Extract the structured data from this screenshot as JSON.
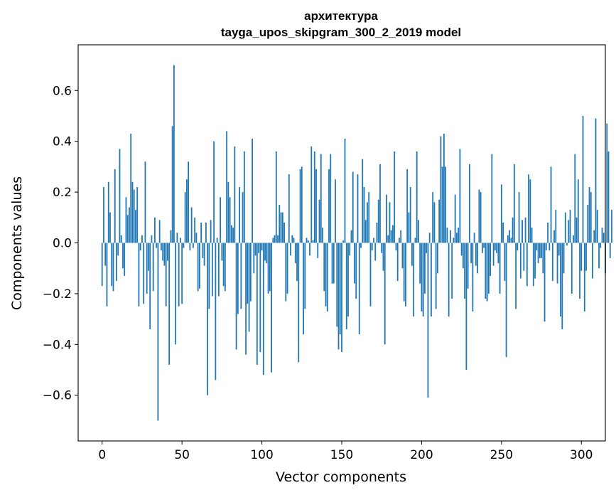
{
  "chart_data": {
    "type": "bar",
    "title": "архитектура",
    "subtitle": "tayga_upos_skipgram_300_2_2019 model",
    "xlabel": "Vector components",
    "ylabel": "Components values",
    "xlim": [
      -15,
      315
    ],
    "ylim": [
      -0.78,
      0.78
    ],
    "xticks": [
      0,
      50,
      100,
      150,
      200,
      250,
      300
    ],
    "yticks": [
      -0.6,
      -0.4,
      -0.2,
      0.0,
      0.2,
      0.4,
      0.6
    ],
    "ytick_labels": [
      "−0.6",
      "−0.4",
      "−0.2",
      "0.0",
      "0.2",
      "0.4",
      "0.6"
    ],
    "xtick_labels": [
      "0",
      "50",
      "100",
      "150",
      "200",
      "250",
      "300"
    ],
    "grid": false,
    "bar_color": "#1f77b4",
    "x_start": 0,
    "values": [
      -0.17,
      0.22,
      -0.09,
      -0.25,
      0.24,
      0.12,
      -0.17,
      -0.19,
      0.29,
      -0.15,
      -0.05,
      0.37,
      0.03,
      -0.1,
      -0.13,
      0.18,
      0.11,
      0.14,
      0.43,
      0.24,
      0.21,
      0.13,
      0.22,
      -0.25,
      -0.03,
      0.03,
      -0.24,
      0.32,
      -0.2,
      -0.11,
      -0.34,
      0.03,
      -0.19,
      0.1,
      -0.02,
      -0.7,
      0.09,
      -0.03,
      -0.07,
      -0.09,
      -0.25,
      -0.07,
      -0.48,
      0.05,
      0.46,
      0.7,
      -0.4,
      0.04,
      -0.25,
      0.02,
      -0.24,
      -0.02,
      0.2,
      0.25,
      0.32,
      -0.03,
      0.14,
      -0.02,
      0.1,
      0.04,
      -0.19,
      -0.18,
      0.08,
      -0.06,
      -0.09,
      0.08,
      -0.6,
      -0.26,
      0.09,
      -0.21,
      0.4,
      -0.54,
      0.02,
      -0.21,
      0.18,
      -0.07,
      -0.17,
      -0.19,
      0.44,
      0.24,
      0.18,
      0.07,
      0.06,
      0.38,
      -0.42,
      -0.28,
      0.22,
      -0.26,
      0.2,
      0.36,
      -0.44,
      -0.24,
      -0.35,
      -0.23,
      0.41,
      -0.12,
      -0.05,
      -0.48,
      -0.04,
      -0.43,
      -0.03,
      -0.52,
      -0.07,
      -0.08,
      -0.2,
      -0.19,
      -0.51,
      0.02,
      0.03,
      0.36,
      0.03,
      0.15,
      0.12,
      0.12,
      0.08,
      -0.23,
      -0.2,
      0.27,
      -0.05,
      0.03,
      0.02,
      -0.08,
      -0.15,
      -0.47,
      0.29,
      0.3,
      -0.36,
      -0.26,
      0.02,
      0.01,
      -0.05,
      0.38,
      0.01,
      0.36,
      0.29,
      -0.06,
      0.17,
      0.35,
      0.06,
      -0.19,
      -0.25,
      -0.27,
      0.29,
      0.35,
      -0.16,
      -0.16,
      0.25,
      -0.33,
      -0.42,
      -0.36,
      -0.43,
      0.01,
      0.41,
      -0.34,
      -0.29,
      -0.05,
      0.05,
      0.28,
      -0.16,
      -0.22,
      0.27,
      -0.36,
      -0.02,
      0.33,
      0.22,
      0.09,
      0.16,
      0.2,
      -0.25,
      -0.03,
      0.02,
      -0.07,
      0.08,
      0.17,
      0.31,
      -0.04,
      -0.11,
      -0.4,
      0.19,
      0.03,
      0.16,
      0.05,
      0.07,
      0.36,
      -0.03,
      -0.15,
      0.02,
      0.05,
      -0.1,
      -0.23,
      -0.25,
      0.29,
      0.12,
      0.22,
      -0.09,
      -0.29,
      0.02,
      0.36,
      0.09,
      -0.16,
      -0.27,
      -0.29,
      -0.2,
      -0.04,
      -0.61,
      0.04,
      -0.29,
      0.2,
      0.16,
      -0.26,
      -0.12,
      0.17,
      0.42,
      0.3,
      0.43,
      0.3,
      0.06,
      -0.29,
      0.05,
      -0.22,
      0.02,
      0.19,
      0.04,
      0.06,
      0.37,
      -0.05,
      -0.1,
      -0.22,
      -0.5,
      -0.18,
      0.31,
      -0.08,
      -0.27,
      0.04,
      -0.09,
      -0.12,
      0.21,
      0.2,
      -0.04,
      -0.02,
      -0.22,
      -0.23,
      -0.2,
      -0.13,
      0.35,
      -0.09,
      -0.03,
      -0.04,
      -0.08,
      -0.2,
      0.23,
      0.08,
      -0.15,
      -0.45,
      0.03,
      0.05,
      0.02,
      0.1,
      0.31,
      -0.26,
      -0.03,
      0.2,
      -0.14,
      0.09,
      -0.11,
      0.1,
      -0.17,
      0.27,
      0.25,
      0.06,
      -0.17,
      -0.14,
      -0.03,
      -0.08,
      -0.06,
      -0.06,
      -0.12,
      -0.31,
      -0.03,
      0.08,
      -0.03,
      0.3,
      -0.15,
      0.05,
      0.13,
      -0.16,
      -0.05,
      -0.29,
      -0.34,
      -0.12,
      0.12,
      -0.01,
      0.09,
      0.13,
      -0.2,
      0.03,
      0.35,
      0.1,
      0.25,
      -0.22,
      -0.11,
      0.5,
      -0.27,
      -0.11,
      0.15,
      0.22,
      0.2,
      -0.14,
      0.05,
      0.49,
      0.13,
      -0.1,
      -0.02,
      0.06,
      0.04,
      -0.12,
      0.47,
      0.36,
      -0.06,
      0.13
    ]
  }
}
